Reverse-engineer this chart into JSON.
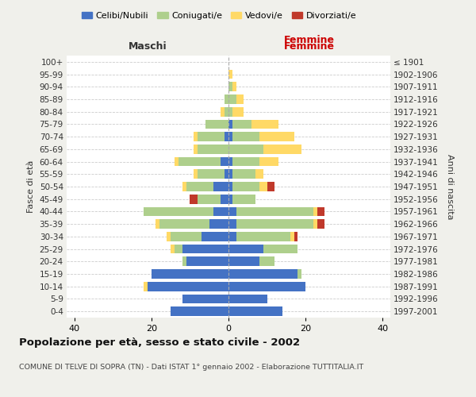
{
  "age_groups": [
    "0-4",
    "5-9",
    "10-14",
    "15-19",
    "20-24",
    "25-29",
    "30-34",
    "35-39",
    "40-44",
    "45-49",
    "50-54",
    "55-59",
    "60-64",
    "65-69",
    "70-74",
    "75-79",
    "80-84",
    "85-89",
    "90-94",
    "95-99",
    "100+"
  ],
  "birth_years": [
    "1997-2001",
    "1992-1996",
    "1987-1991",
    "1982-1986",
    "1977-1981",
    "1972-1976",
    "1967-1971",
    "1962-1966",
    "1957-1961",
    "1952-1956",
    "1947-1951",
    "1942-1946",
    "1937-1941",
    "1932-1936",
    "1927-1931",
    "1922-1926",
    "1917-1921",
    "1912-1916",
    "1907-1911",
    "1902-1906",
    "≤ 1901"
  ],
  "male": {
    "celibi": [
      15,
      12,
      21,
      20,
      11,
      12,
      7,
      5,
      4,
      2,
      4,
      1,
      2,
      0,
      1,
      0,
      0,
      0,
      0,
      0,
      0
    ],
    "coniugati": [
      0,
      0,
      0,
      0,
      1,
      2,
      8,
      13,
      18,
      6,
      7,
      7,
      11,
      8,
      7,
      6,
      1,
      1,
      0,
      0,
      0
    ],
    "vedovi": [
      0,
      0,
      1,
      0,
      0,
      1,
      1,
      1,
      0,
      0,
      1,
      1,
      1,
      1,
      1,
      0,
      1,
      0,
      0,
      0,
      0
    ],
    "divorziati": [
      0,
      0,
      0,
      0,
      0,
      0,
      0,
      0,
      0,
      2,
      0,
      0,
      0,
      0,
      0,
      0,
      0,
      0,
      0,
      0,
      0
    ]
  },
  "female": {
    "nubili": [
      14,
      10,
      20,
      18,
      8,
      9,
      2,
      2,
      2,
      1,
      1,
      1,
      1,
      0,
      1,
      1,
      0,
      0,
      0,
      0,
      0
    ],
    "coniugate": [
      0,
      0,
      0,
      1,
      4,
      9,
      14,
      20,
      20,
      6,
      7,
      6,
      7,
      9,
      7,
      5,
      1,
      2,
      1,
      0,
      0
    ],
    "vedove": [
      0,
      0,
      0,
      0,
      0,
      0,
      1,
      1,
      1,
      0,
      2,
      2,
      5,
      10,
      9,
      7,
      3,
      2,
      1,
      1,
      0
    ],
    "divorziate": [
      0,
      0,
      0,
      0,
      0,
      0,
      1,
      2,
      2,
      0,
      2,
      0,
      0,
      0,
      0,
      0,
      0,
      0,
      0,
      0,
      0
    ]
  },
  "colors": {
    "celibi": "#4472C4",
    "coniugati": "#AECF8C",
    "vedovi": "#FFD966",
    "divorziati": "#C0392B"
  },
  "title": "Popolazione per età, sesso e stato civile - 2002",
  "subtitle": "COMUNE DI TELVE DI SOPRA (TN) - Dati ISTAT 1° gennaio 2002 - Elaborazione TUTTITALIA.IT",
  "xlabel_left": "Maschi",
  "xlabel_right": "Femmine",
  "ylabel_left": "Fasce di età",
  "ylabel_right": "Anni di nascita",
  "xlim": 42,
  "bg_color": "#f0f0eb",
  "plot_bg": "#ffffff"
}
